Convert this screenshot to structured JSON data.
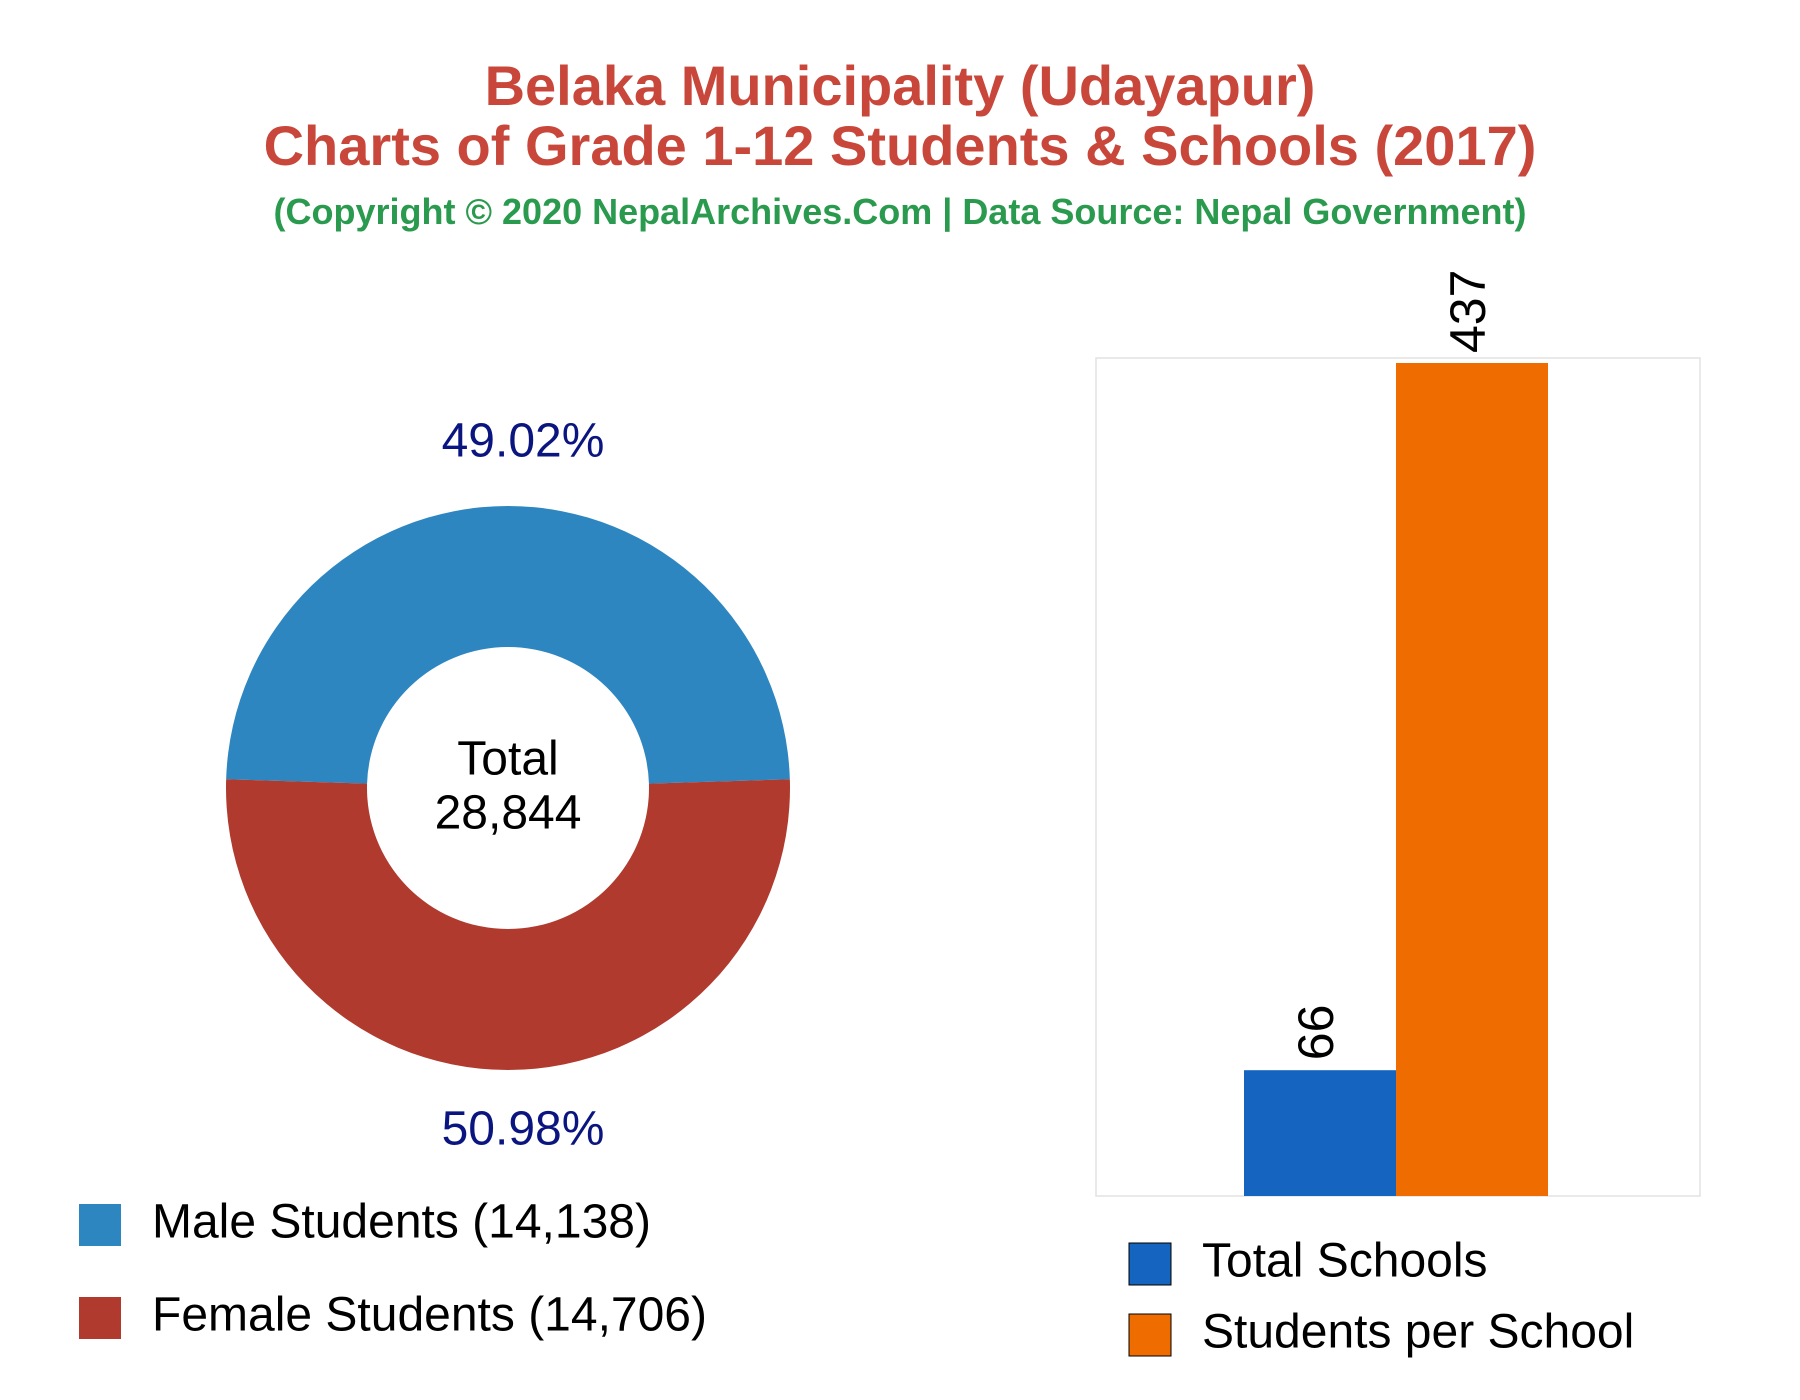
{
  "header": {
    "title_line1": "Belaka Municipality (Udayapur)",
    "title_line2": "Charts of Grade 1-12 Students & Schools (2017)",
    "subtitle": "(Copyright © 2020 NepalArchives.Com | Data Source: Nepal Government)"
  },
  "chart_data": [
    {
      "type": "pie",
      "style": "donut",
      "center_label": [
        "Total",
        "28,844"
      ],
      "total": 28844,
      "slices": [
        {
          "label": "Male Students (14,138)",
          "value": 14138,
          "percent_label": "49.02%",
          "color": "#2e86c1"
        },
        {
          "label": "Female Students (14,706)",
          "value": 14706,
          "percent_label": "50.98%",
          "color": "#b03a2e"
        }
      ],
      "percent_label_color": "#0b1580",
      "legend_position": "bottom-left"
    },
    {
      "type": "bar",
      "categories": [
        "Total Schools",
        "Students per School"
      ],
      "values": [
        66,
        437
      ],
      "value_labels": [
        "66",
        "437"
      ],
      "colors": [
        "#1565c0",
        "#ef6c00"
      ],
      "ylim": [
        0,
        437
      ],
      "grid": false,
      "legend_position": "bottom",
      "legend": [
        "Total Schools",
        "Students per School"
      ]
    }
  ]
}
